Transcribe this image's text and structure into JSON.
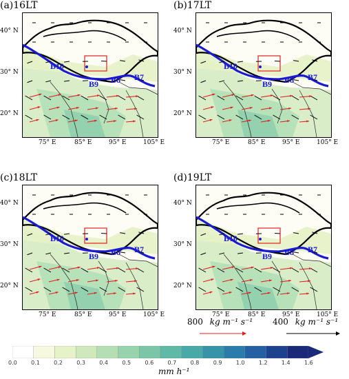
{
  "panels": [
    {
      "label": "(a)16LT"
    },
    {
      "label": "(b)17LT"
    },
    {
      "label": "(c)18LT"
    },
    {
      "label": "(d)19LT"
    }
  ],
  "lat_ticks": [
    "40° N",
    "30° N",
    "20° N"
  ],
  "lon_ticks": [
    "75° E",
    "85° E",
    "95° E",
    "105° E"
  ],
  "region_labels": [
    "B10",
    "B9",
    "B8",
    "B7"
  ],
  "reference_vectors": [
    {
      "value": "800",
      "unit": "kg m⁻¹ s⁻¹",
      "color": "#e02020"
    },
    {
      "value": "400",
      "unit": "kg m⁻¹ s⁻¹",
      "color": "#000000"
    }
  ],
  "colorbar": {
    "ticks": [
      "0.0",
      "0.1",
      "0.2",
      "0.3",
      "0.4",
      "0.5",
      "0.6",
      "0.7",
      "0.8",
      "0.9",
      "1.0",
      "1.2",
      "1.4",
      "1.6"
    ],
    "unit": "mm h⁻¹",
    "colors": [
      "#ffffff",
      "#f6f9e0",
      "#e6f2c8",
      "#cfe9bd",
      "#b4dfb4",
      "#98d3ad",
      "#7cc6a8",
      "#60b9a6",
      "#48a9a6",
      "#3694a8",
      "#2a7daa",
      "#2460a2",
      "#1f428f",
      "#1a2a78"
    ]
  }
}
